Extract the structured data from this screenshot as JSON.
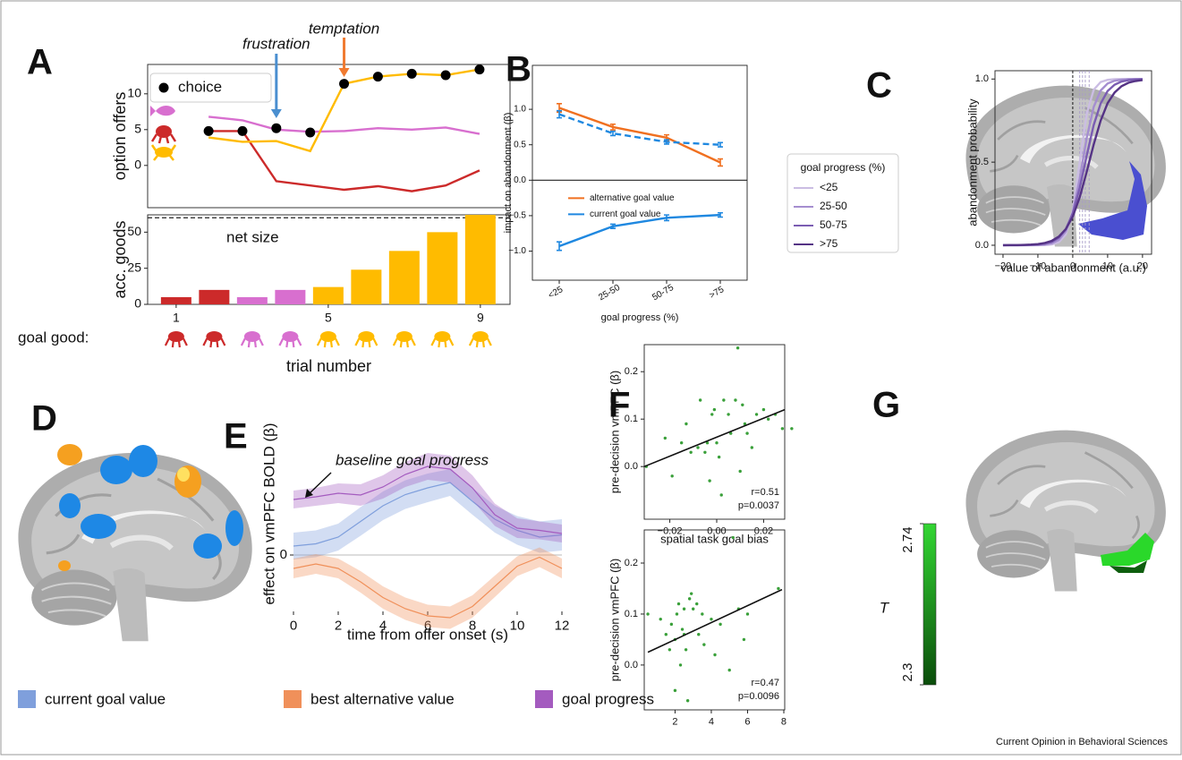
{
  "panels": [
    "A",
    "B",
    "C",
    "D",
    "E",
    "F",
    "G"
  ],
  "chart_data": [
    {
      "type": "line",
      "ylabel": "option offers",
      "x": [
        1,
        2,
        3,
        4,
        5,
        6,
        7,
        8,
        9
      ],
      "xlim": [
        -0.8,
        9.9
      ],
      "ylim": [
        -5.9,
        14.1
      ],
      "yticks": [
        0,
        5,
        10
      ],
      "legend": "upper left",
      "series": [
        {
          "color": "#d86fcf",
          "values": [
            6.8,
            6.3,
            5.0,
            4.7,
            4.8,
            5.2,
            5.0,
            5.3,
            4.4
          ]
        },
        {
          "color": "#cc2a2a",
          "values": [
            4.8,
            4.8,
            -2.2,
            -2.8,
            -3.4,
            -2.9,
            -3.6,
            -2.8,
            -0.7
          ]
        },
        {
          "color": "#ffbb00",
          "values": [
            3.9,
            3.3,
            3.4,
            2.0,
            11.4,
            12.4,
            12.8,
            12.6,
            13.4
          ]
        },
        {
          "name": "choice",
          "color": "#000000",
          "mode": "markers",
          "values": [
            4.8,
            4.8,
            5.2,
            4.6,
            11.4,
            12.4,
            12.8,
            12.6,
            13.4
          ]
        }
      ],
      "annotations": [
        {
          "text": "frustration",
          "x": 3,
          "color": "#4a8fd0"
        },
        {
          "text": "temptation",
          "x": 5,
          "color": "#f07a30"
        }
      ]
    },
    {
      "type": "bar",
      "ylabel": "acc. goods",
      "xlabel": "trial number",
      "x": [
        1,
        2,
        3,
        4,
        5,
        6,
        7,
        8,
        9
      ],
      "xlim": [
        0.25,
        9.78
      ],
      "xticks": [
        1,
        5,
        9
      ],
      "ylim": [
        0,
        62
      ],
      "yticks": [
        0,
        25,
        50
      ],
      "values": [
        5,
        10,
        5,
        10,
        12,
        24,
        37,
        50,
        62
      ],
      "colors": [
        "#cc2a2a",
        "#cc2a2a",
        "#d86fcf",
        "#d86fcf",
        "#ffbb00",
        "#ffbb00",
        "#ffbb00",
        "#ffbb00",
        "#ffbb00"
      ],
      "hline": {
        "value": 60,
        "label": "net size"
      },
      "goal_label": "goal good:"
    },
    {
      "type": "line",
      "ylabel": "impact on abandonment (β)",
      "xlabel": "goal progress (%)",
      "categories": [
        "<25",
        "25-50",
        "50-75",
        ">75"
      ],
      "ylim": [
        -1.41,
        1.62
      ],
      "yticks": [
        {
          "value": -1,
          "label": "−1.0"
        },
        {
          "value": -0.5,
          "label": "−0.5"
        },
        {
          "value": 0,
          "label": "0.0"
        },
        0.5,
        {
          "value": 1,
          "label": "1.0"
        }
      ],
      "zero_line": true,
      "legend": "lower left",
      "error_style": "bar",
      "series": [
        {
          "name": "alternative goal value",
          "color": "#f07020",
          "values": [
            1.02,
            0.75,
            0.6,
            0.25
          ],
          "errors": [
            0.06,
            0.04,
            0.04,
            0.05
          ]
        },
        {
          "color": "#1f88e0",
          "dash": true,
          "values": [
            0.93,
            0.66,
            0.54,
            0.5
          ],
          "errors": [
            0.05,
            0.03,
            0.03,
            0.03
          ]
        },
        {
          "name": "current goal value",
          "color": "#1f88e0",
          "values": [
            -0.93,
            -0.65,
            -0.53,
            -0.49
          ],
          "errors": [
            0.06,
            0.03,
            0.04,
            0.03
          ]
        }
      ]
    },
    {
      "type": "line",
      "ylabel": "abandonment probability",
      "xlabel": "value of abandonment (a.u.)",
      "x": [
        -20,
        -18,
        -16,
        -14,
        -12,
        -10,
        -8,
        -6,
        -4,
        -2,
        0,
        2,
        4,
        6,
        8,
        10,
        12,
        14,
        16,
        18,
        20
      ],
      "xlim": [
        -22.3,
        22.6
      ],
      "ylim": [
        -0.054,
        1.05
      ],
      "xticks": [
        {
          "value": -20,
          "label": "−20"
        },
        {
          "value": -10,
          "label": "−10"
        },
        0,
        10,
        20
      ],
      "yticks": [
        {
          "value": 0,
          "label": "0.0"
        },
        0.5,
        {
          "value": 1,
          "label": "1.0"
        }
      ],
      "vlines": [
        0,
        2,
        2.8,
        3.6,
        4.7
      ],
      "vline_colors": [
        "#000000",
        "#a89cc8",
        "#a89cc8",
        "#a89cc8",
        "#a89cc8"
      ],
      "legend": "left outside",
      "legend_title": "goal progress (%)",
      "series": [
        {
          "name": "<25",
          "color": "#cbbde3",
          "values": [
            0,
            0,
            0,
            0,
            0,
            0,
            0.001,
            0.005,
            0.018,
            0.065,
            0.209,
            0.5,
            0.791,
            0.935,
            0.982,
            0.995,
            0.999,
            1,
            1,
            1,
            1
          ]
        },
        {
          "name": "25-50",
          "color": "#a58ed0",
          "values": [
            0,
            0,
            0,
            0,
            0.001,
            0.002,
            0.005,
            0.012,
            0.032,
            0.083,
            0.198,
            0.401,
            0.646,
            0.832,
            0.931,
            0.973,
            0.99,
            0.996,
            0.999,
            1,
            1
          ]
        },
        {
          "name": "50-75",
          "color": "#7b5db2",
          "values": [
            0,
            0,
            0,
            0.001,
            0.002,
            0.004,
            0.01,
            0.021,
            0.046,
            0.096,
            0.192,
            0.345,
            0.54,
            0.723,
            0.853,
            0.928,
            0.966,
            0.985,
            0.993,
            0.997,
            0.999
          ]
        },
        {
          "name": ">75",
          "color": "#553385",
          "values": [
            0,
            0.001,
            0.001,
            0.002,
            0.004,
            0.007,
            0.014,
            0.027,
            0.052,
            0.097,
            0.172,
            0.289,
            0.442,
            0.606,
            0.75,
            0.855,
            0.919,
            0.957,
            0.978,
            0.988,
            0.994
          ]
        }
      ]
    },
    {
      "type": "line",
      "ylabel": "effect on vmPFC BOLD (β)",
      "xlabel": "time from offer onset (s)",
      "x": [
        0,
        1,
        2,
        3,
        4,
        5,
        6,
        7,
        8,
        9,
        10,
        11,
        12
      ],
      "xlim": [
        0,
        12
      ],
      "ylim": [
        -1.26,
        3.1
      ],
      "xticks": [
        0,
        2,
        4,
        6,
        8,
        10,
        12
      ],
      "yticks": [
        0
      ],
      "frame": false,
      "zero_line": true,
      "error_style": "band",
      "legend": "bottom outside",
      "annotation": "baseline goal progress",
      "series": [
        {
          "name": "current goal value",
          "color": "#7f9fdc",
          "values": [
            0.2,
            0.25,
            0.4,
            0.75,
            1.1,
            1.35,
            1.5,
            1.62,
            1.2,
            0.8,
            0.55,
            0.4,
            0.45
          ],
          "errors": [
            0.3,
            0.3,
            0.3,
            0.32,
            0.32,
            0.32,
            0.32,
            0.3,
            0.3,
            0.3,
            0.32,
            0.35,
            0.35
          ]
        },
        {
          "name": "best alternative value",
          "color": "#f0905a",
          "values": [
            -0.3,
            -0.2,
            -0.3,
            -0.6,
            -0.95,
            -1.2,
            -1.36,
            -1.4,
            -1.15,
            -0.7,
            -0.25,
            -0.05,
            -0.3
          ],
          "errors": [
            0.22,
            0.22,
            0.22,
            0.24,
            0.25,
            0.25,
            0.25,
            0.25,
            0.25,
            0.24,
            0.22,
            0.22,
            0.22
          ]
        },
        {
          "name": "goal progress",
          "color": "#a45bbf",
          "values": [
            1.24,
            1.3,
            1.38,
            1.34,
            1.52,
            1.8,
            1.98,
            1.92,
            1.5,
            0.9,
            0.6,
            0.55,
            0.48
          ],
          "errors": [
            0.2,
            0.2,
            0.22,
            0.24,
            0.26,
            0.28,
            0.3,
            0.3,
            0.28,
            0.25,
            0.22,
            0.2,
            0.2
          ]
        }
      ]
    },
    {
      "type": "scatter",
      "ylabel": "pre-decision vmPFC (β)",
      "xlabel": "spatial task goal bias",
      "color": "#3aa03a",
      "x": [
        -0.03,
        -0.022,
        -0.019,
        -0.015,
        -0.013,
        -0.011,
        -0.008,
        -0.007,
        -0.005,
        -0.004,
        -0.003,
        -0.002,
        -0.001,
        0.0,
        0.001,
        0.002,
        0.003,
        0.005,
        0.006,
        0.008,
        0.009,
        0.01,
        0.011,
        0.012,
        0.013,
        0.015,
        0.017,
        0.02,
        0.022,
        0.025,
        0.028,
        0.032
      ],
      "values": [
        0.0,
        0.06,
        -0.02,
        0.05,
        0.09,
        0.03,
        0.04,
        0.14,
        0.03,
        0.05,
        -0.03,
        0.11,
        0.12,
        0.05,
        0.02,
        -0.06,
        0.14,
        0.11,
        0.07,
        0.14,
        0.25,
        -0.01,
        0.13,
        0.09,
        0.07,
        0.04,
        0.11,
        0.12,
        0.1,
        0.11,
        0.08,
        0.08
      ],
      "xlim": [
        -0.0309,
        0.029
      ],
      "ylim": [
        -0.111,
        0.257
      ],
      "xticks": [
        {
          "value": -0.02,
          "label": "−0.02"
        },
        {
          "value": 0,
          "label": "0.00"
        },
        {
          "value": 0.02,
          "label": "0.02"
        }
      ],
      "yticks": [
        {
          "value": 0,
          "label": "0.0"
        },
        0.1,
        0.2
      ],
      "fit": {
        "x": [
          -0.0309,
          0.029
        ],
        "values": [
          0.0,
          0.12
        ]
      },
      "stats": [
        "r=0.51",
        "p=0.0037"
      ]
    },
    {
      "type": "scatter",
      "ylabel": "pre-decision vmPFC (β)",
      "color": "#3aa03a",
      "x": [
        0.5,
        1.2,
        1.5,
        1.7,
        1.8,
        2.0,
        2.0,
        2.1,
        2.2,
        2.3,
        2.4,
        2.5,
        2.5,
        2.6,
        2.7,
        2.8,
        2.9,
        3.0,
        3.2,
        3.3,
        3.5,
        3.6,
        4.0,
        4.2,
        4.5,
        5.0,
        5.2,
        5.5,
        5.8,
        6.0,
        7.7
      ],
      "values": [
        0.1,
        0.09,
        0.06,
        0.03,
        0.08,
        0.05,
        -0.05,
        0.1,
        0.12,
        0.0,
        0.07,
        0.11,
        0.06,
        0.03,
        -0.07,
        0.13,
        0.14,
        0.11,
        0.12,
        0.06,
        0.1,
        0.04,
        0.09,
        0.02,
        0.08,
        -0.01,
        0.25,
        0.11,
        0.05,
        0.1,
        0.15
      ],
      "xlim": [
        0.3,
        8.05
      ],
      "ylim": [
        -0.088,
        0.265
      ],
      "xticks": [
        2,
        4,
        6,
        8
      ],
      "yticks": [
        {
          "value": 0,
          "label": "0.0"
        },
        0.1,
        0.2
      ],
      "fit": {
        "x": [
          0.5,
          7.9
        ],
        "values": [
          0.025,
          0.148
        ]
      },
      "stats": [
        "r=0.47",
        "p=0.0096"
      ]
    }
  ],
  "colorbar": {
    "label": "T",
    "ticks": [
      2.3,
      2.74
    ],
    "colors": [
      "#0b4d0b",
      "#33d633"
    ]
  },
  "credit": "Current Opinion in Behavioral Sciences"
}
